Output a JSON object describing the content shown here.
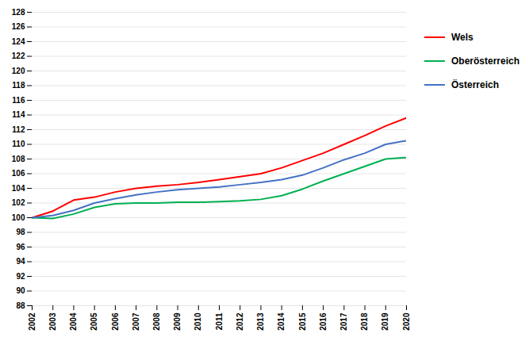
{
  "chart_data": {
    "type": "line",
    "x": [
      2002,
      2003,
      2004,
      2005,
      2006,
      2007,
      2008,
      2009,
      2010,
      2011,
      2012,
      2013,
      2014,
      2015,
      2016,
      2017,
      2018,
      2019,
      2020
    ],
    "series": [
      {
        "name": "Wels",
        "color": "#ff0000",
        "values": [
          100.0,
          100.9,
          102.4,
          102.8,
          103.5,
          104.0,
          104.3,
          104.5,
          104.8,
          105.2,
          105.6,
          106.0,
          106.8,
          107.8,
          108.8,
          110.0,
          111.2,
          112.5,
          113.6
        ]
      },
      {
        "name": "Oberösterreich",
        "color": "#00b050",
        "values": [
          100.0,
          99.9,
          100.5,
          101.4,
          101.9,
          102.0,
          102.0,
          102.1,
          102.1,
          102.2,
          102.3,
          102.5,
          103.0,
          103.9,
          105.0,
          106.0,
          107.0,
          108.0,
          108.2
        ]
      },
      {
        "name": "Österreich",
        "color": "#4472c4",
        "values": [
          100.0,
          100.3,
          101.0,
          102.0,
          102.6,
          103.1,
          103.5,
          103.8,
          104.0,
          104.2,
          104.5,
          104.8,
          105.2,
          105.8,
          106.8,
          107.9,
          108.8,
          110.0,
          110.5
        ]
      }
    ],
    "xlim": [
      2002,
      2020
    ],
    "xticks": [
      2002,
      2003,
      2004,
      2005,
      2006,
      2007,
      2008,
      2009,
      2010,
      2011,
      2012,
      2013,
      2014,
      2015,
      2016,
      2017,
      2018,
      2019,
      2020
    ],
    "ylim": [
      88,
      128
    ],
    "yticks": [
      88,
      90,
      92,
      94,
      96,
      98,
      100,
      102,
      104,
      106,
      108,
      110,
      112,
      114,
      116,
      118,
      120,
      122,
      124,
      126,
      128
    ],
    "grid": true,
    "legend": "right"
  }
}
